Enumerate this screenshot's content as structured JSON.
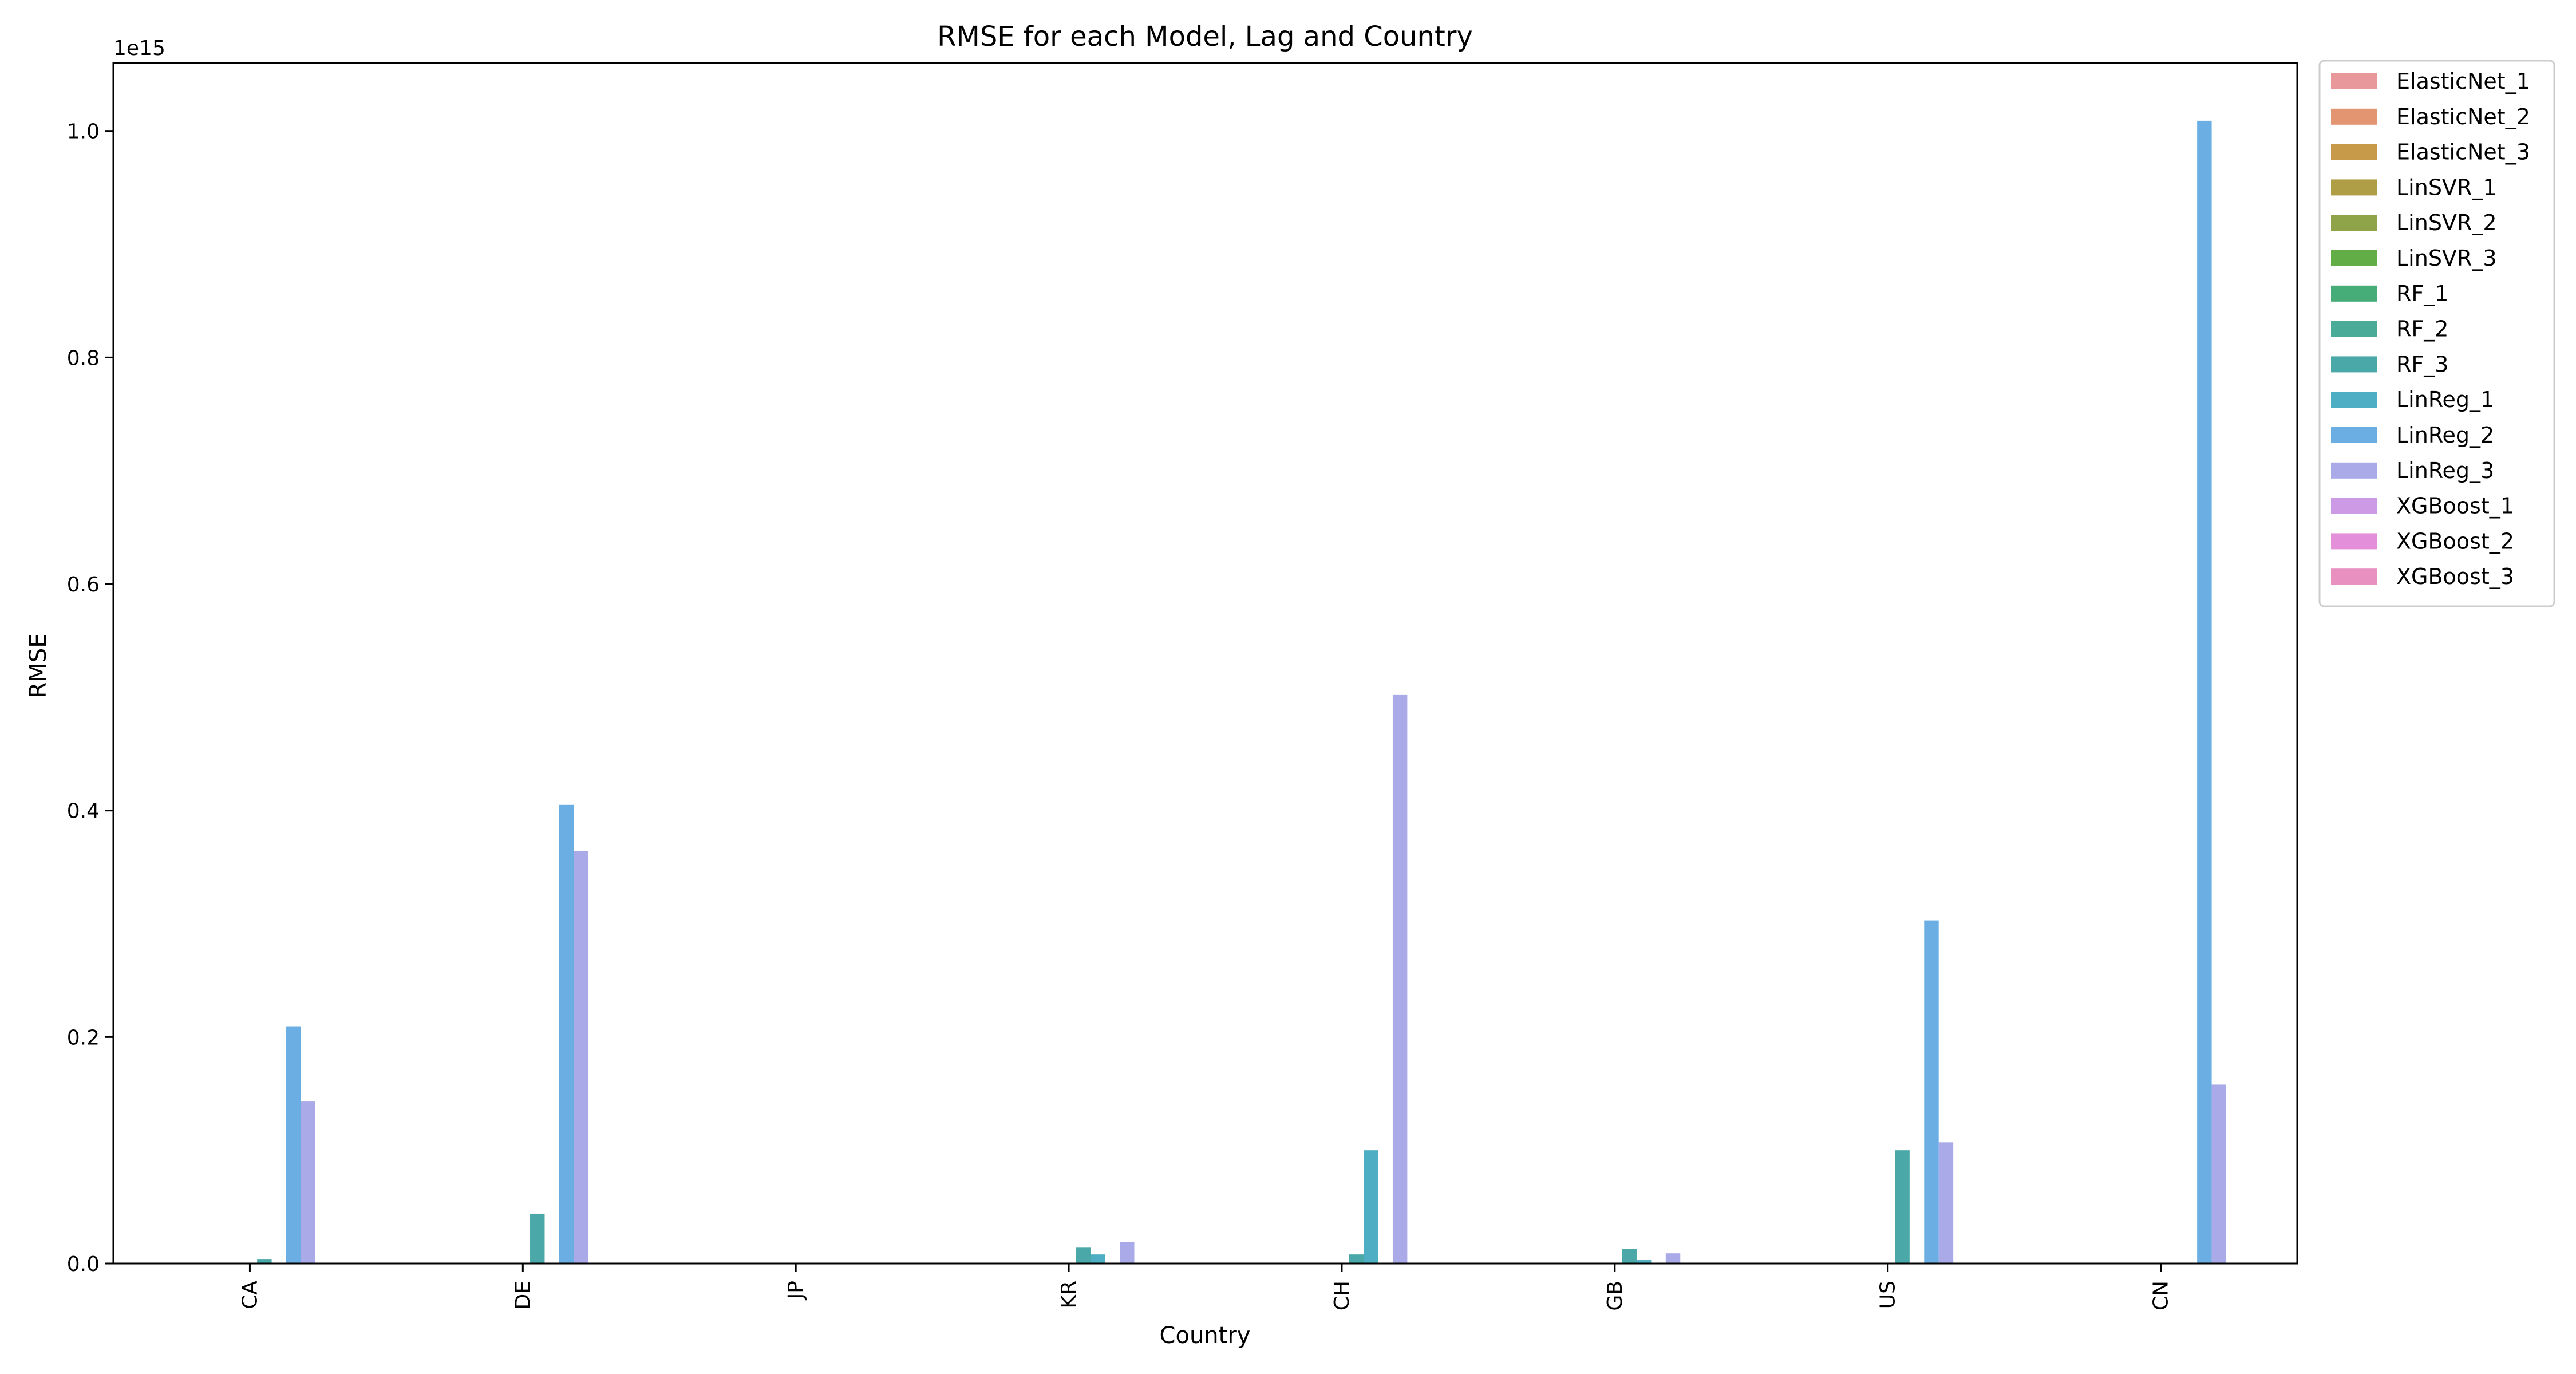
{
  "chart_data": {
    "type": "bar",
    "title": "RMSE for each Model, Lag and Country",
    "xlabel": "Country",
    "ylabel": "RMSE",
    "offset_text": "1e15",
    "scale": 1000000000000000.0,
    "categories": [
      "CA",
      "DE",
      "JP",
      "KR",
      "CH",
      "GB",
      "US",
      "CN"
    ],
    "ylim": [
      0,
      1.06
    ],
    "yticks": [
      0.0,
      0.2,
      0.4,
      0.6,
      0.8,
      1.0
    ],
    "ytick_labels": [
      "0.0",
      "0.2",
      "0.4",
      "0.6",
      "0.8",
      "1.0"
    ],
    "grid": false,
    "legend_position": "outside-upper-right",
    "series": [
      {
        "name": "ElasticNet_1",
        "color": "#e8979a",
        "values": [
          0,
          0,
          0,
          0,
          0,
          0,
          0,
          0
        ]
      },
      {
        "name": "ElasticNet_2",
        "color": "#e39470",
        "values": [
          0,
          0,
          0,
          0,
          0,
          0,
          0,
          0
        ]
      },
      {
        "name": "ElasticNet_3",
        "color": "#c79a4a",
        "values": [
          0,
          0,
          0,
          0,
          0,
          0,
          0,
          0
        ]
      },
      {
        "name": "LinSVR_1",
        "color": "#b09e47",
        "values": [
          0,
          0,
          0,
          0,
          0,
          0,
          0,
          0
        ]
      },
      {
        "name": "LinSVR_2",
        "color": "#8fa448",
        "values": [
          0,
          0,
          0,
          0,
          0,
          0,
          0,
          0
        ]
      },
      {
        "name": "LinSVR_3",
        "color": "#62ad46",
        "values": [
          0,
          0,
          0,
          0,
          0,
          0,
          0,
          0
        ]
      },
      {
        "name": "RF_1",
        "color": "#46ac78",
        "values": [
          0,
          0,
          0,
          0,
          0,
          0,
          0,
          0
        ]
      },
      {
        "name": "RF_2",
        "color": "#4aab98",
        "values": [
          0,
          0,
          0,
          0,
          0,
          0,
          0,
          0
        ]
      },
      {
        "name": "RF_3",
        "color": "#4ba8a8",
        "values": [
          0.004,
          0.044,
          0,
          0.014,
          0.008,
          0.013,
          0.1,
          0
        ]
      },
      {
        "name": "LinReg_1",
        "color": "#4eaec4",
        "values": [
          0,
          0,
          0,
          0.008,
          0.1,
          0.003,
          0,
          0
        ]
      },
      {
        "name": "LinReg_2",
        "color": "#6aaee3",
        "values": [
          0.209,
          0.405,
          0,
          0,
          0,
          0,
          0.303,
          1.009
        ]
      },
      {
        "name": "LinReg_3",
        "color": "#aaaae9",
        "values": [
          0.143,
          0.364,
          0,
          0.019,
          0.502,
          0.009,
          0.107,
          0.158
        ]
      },
      {
        "name": "XGBoost_1",
        "color": "#cd9be6",
        "values": [
          0,
          0,
          0,
          0,
          0,
          0,
          0,
          0
        ]
      },
      {
        "name": "XGBoost_2",
        "color": "#e48fd9",
        "values": [
          0,
          0,
          0,
          0,
          0,
          0,
          0,
          0
        ]
      },
      {
        "name": "XGBoost_3",
        "color": "#e890c0",
        "values": [
          0,
          0,
          0,
          0,
          0,
          0,
          0,
          0
        ]
      }
    ]
  }
}
